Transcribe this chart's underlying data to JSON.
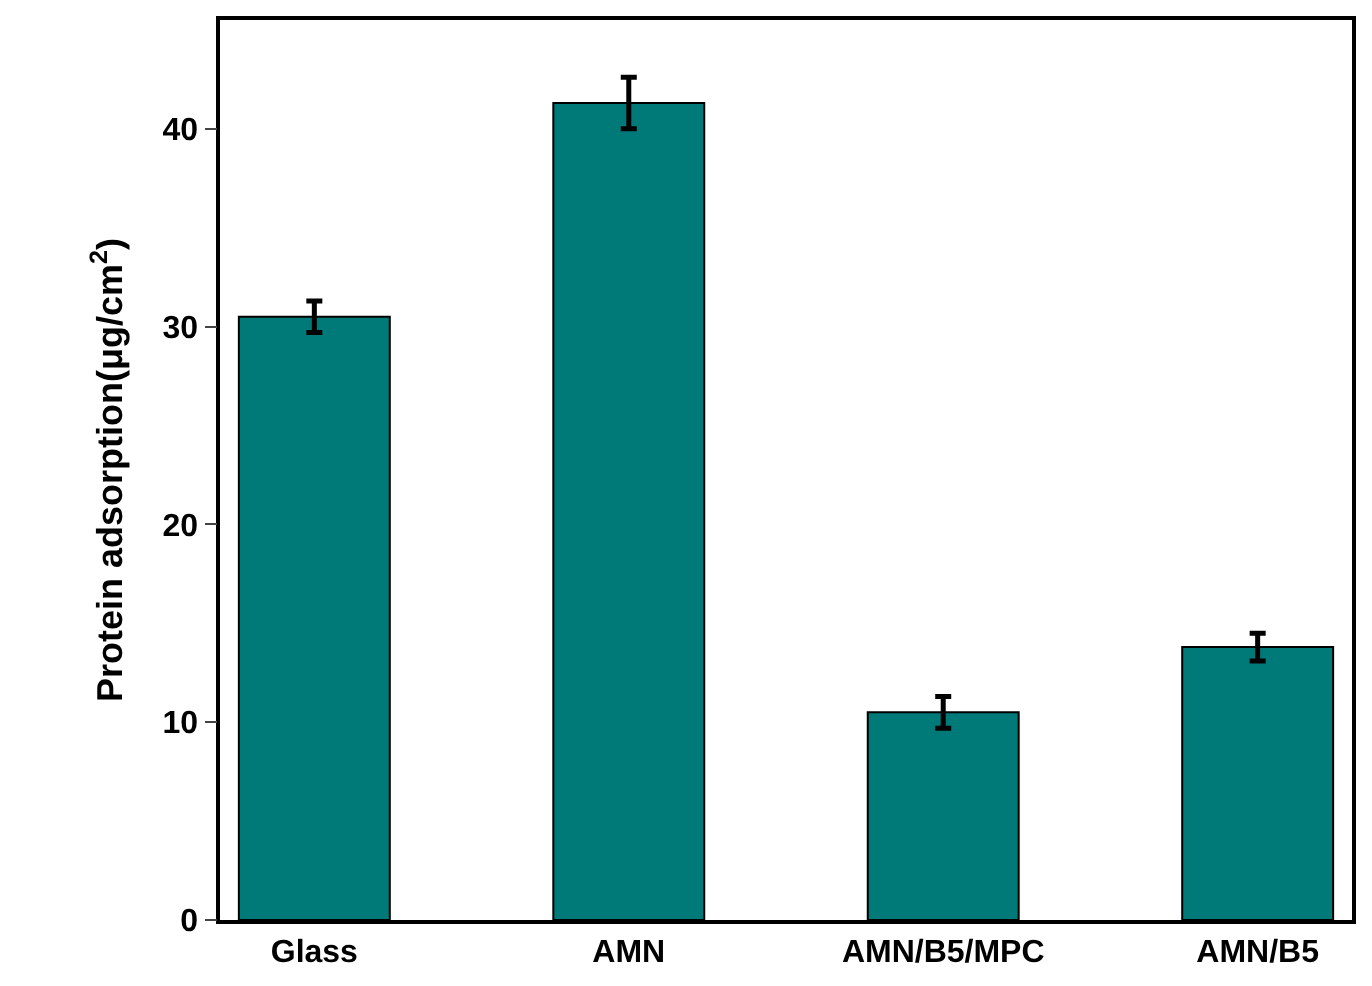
{
  "chart_data": {
    "type": "bar",
    "ylabel": "Protein adsorption(μg/cm$^{2}$)",
    "categories": [
      "Glass",
      "AMN",
      "AMN/B5/MPC",
      "AMN/B5"
    ],
    "series": [
      {
        "color": "#007a78",
        "values": [
          30.5,
          41.3,
          10.5,
          13.8
        ],
        "errors": [
          0.8,
          1.3,
          0.8,
          0.7
        ]
      }
    ],
    "ylim": [
      0,
      45.5
    ],
    "yticks": [
      0,
      10,
      20,
      30,
      40
    ],
    "legend": false
  }
}
